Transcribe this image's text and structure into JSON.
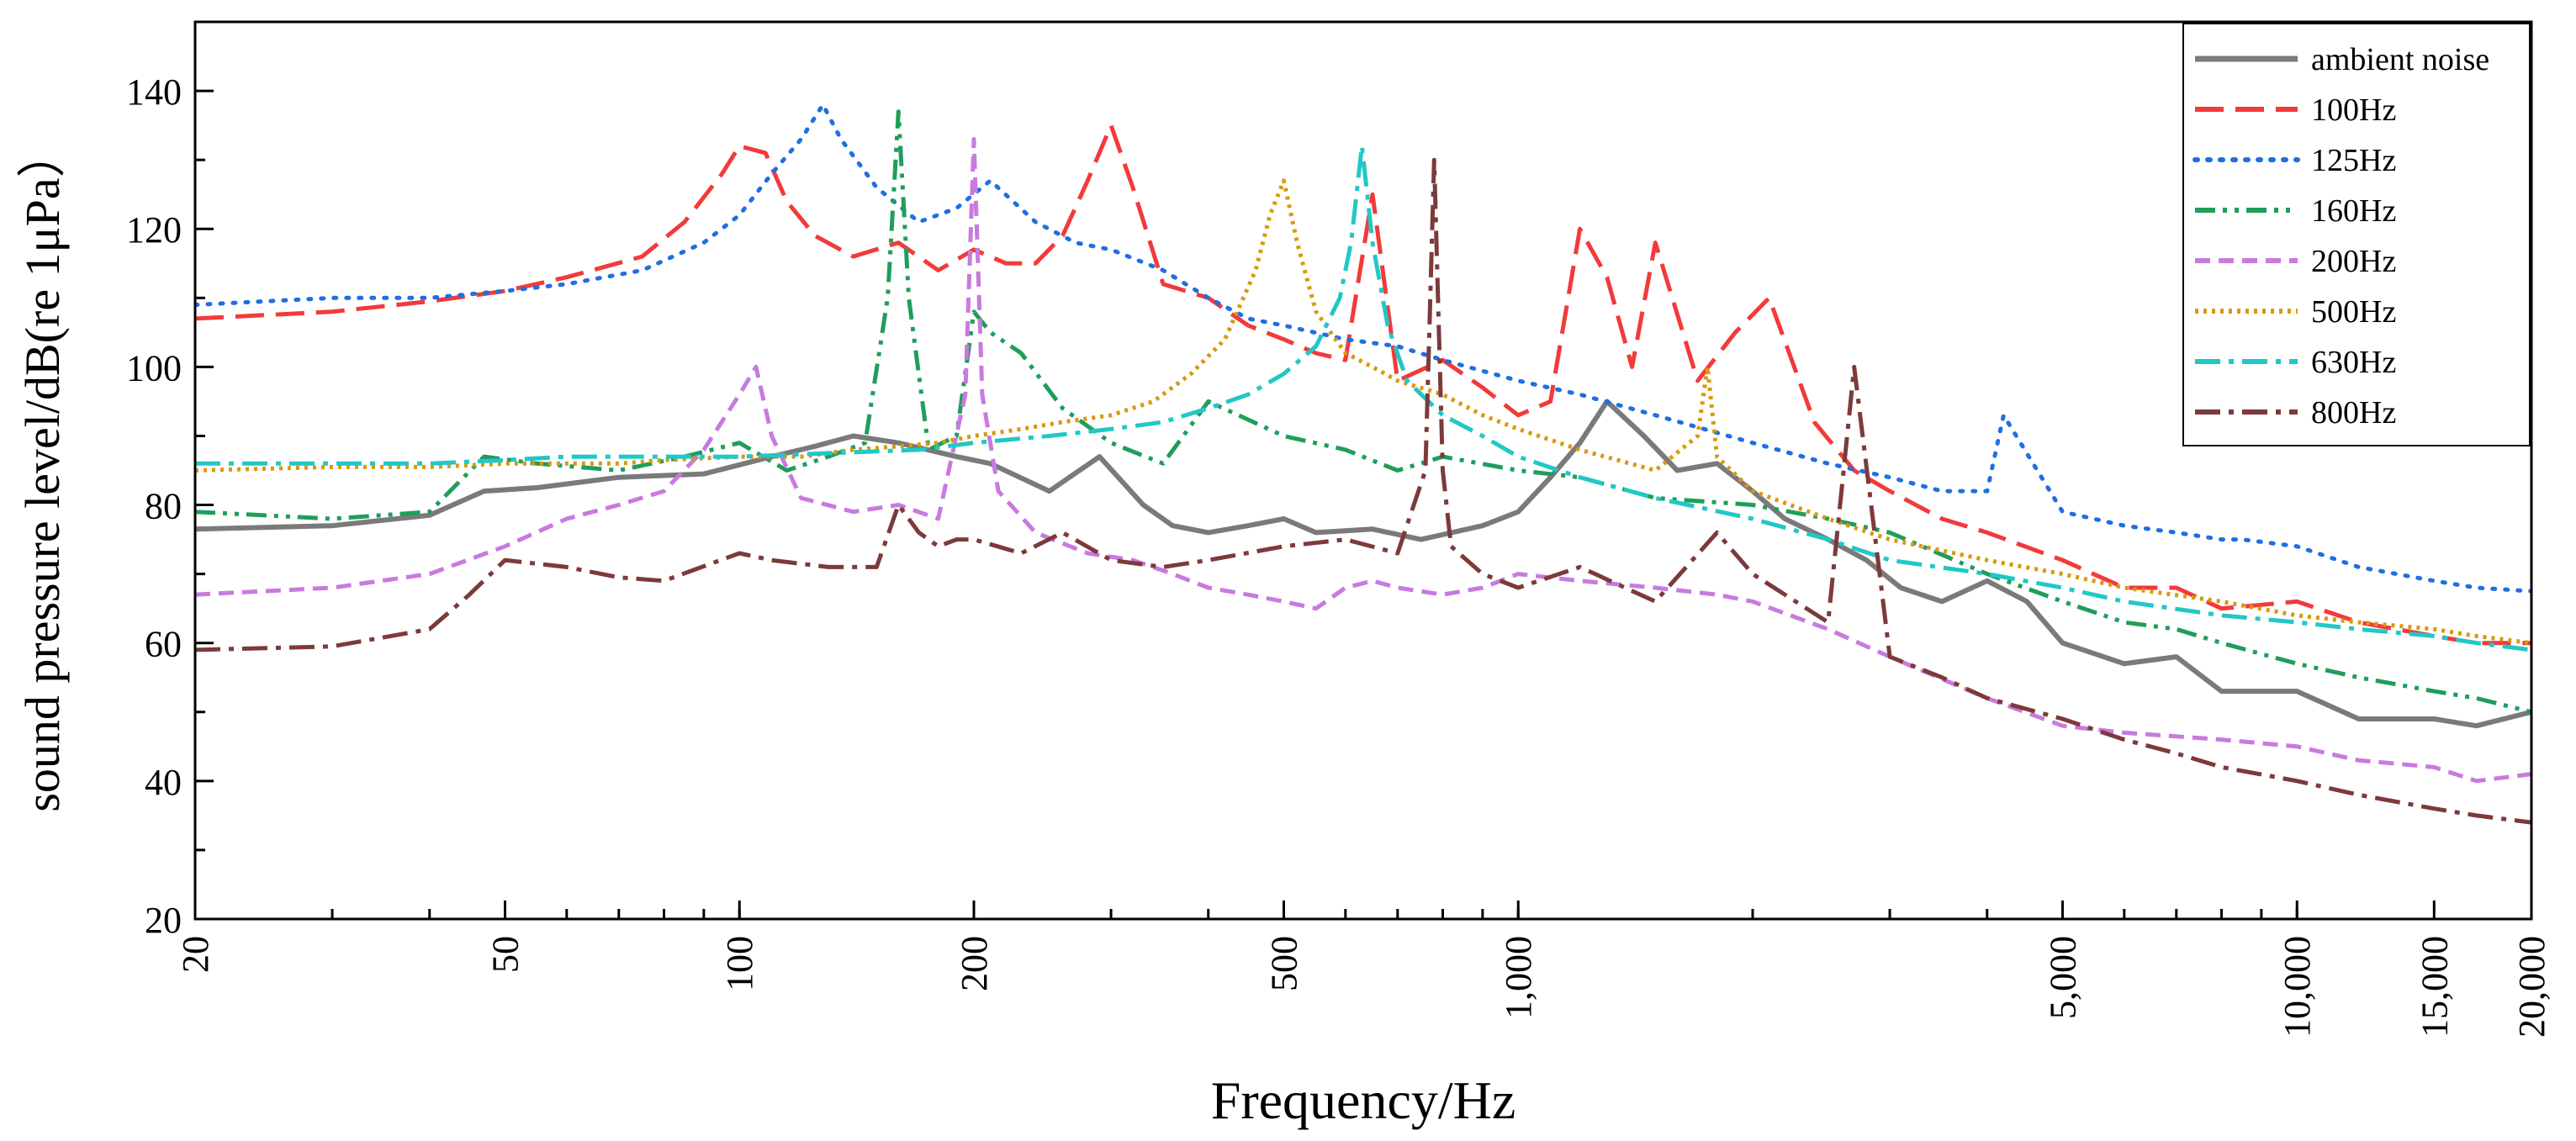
{
  "chart_data": {
    "type": "line",
    "title": "",
    "xlabel": "Frequency/Hz",
    "ylabel": "sound pressure level/dB(re 1μPa）",
    "xscale": "log",
    "xlim": [
      20,
      20000
    ],
    "ylim": [
      20,
      150
    ],
    "x_ticks": [
      20,
      50,
      100,
      200,
      500,
      1000,
      5000,
      10000,
      15000,
      20000
    ],
    "x_tick_labels": [
      "20",
      "50",
      "100",
      "200",
      "500",
      "1,000",
      "5,000",
      "10,000",
      "15,000",
      "20,000"
    ],
    "y_ticks": [
      20,
      40,
      60,
      80,
      100,
      120,
      140
    ],
    "y_tick_labels": [
      "20",
      "40",
      "60",
      "80",
      "100",
      "120",
      "140"
    ],
    "legend_position": "top-right",
    "series": [
      {
        "name": "ambient noise",
        "color": "#7a7a7a",
        "dash": "solid",
        "x": [
          20,
          30,
          40,
          47,
          55,
          70,
          90,
          110,
          125,
          140,
          160,
          190,
          210,
          250,
          290,
          330,
          360,
          400,
          450,
          500,
          550,
          650,
          750,
          900,
          1000,
          1100,
          1200,
          1300,
          1450,
          1600,
          1800,
          2000,
          2200,
          2500,
          2800,
          3100,
          3500,
          4000,
          4500,
          5000,
          6000,
          7000,
          8000,
          10000,
          12000,
          15000,
          17000,
          20000
        ],
        "y": [
          76.5,
          77,
          78.5,
          82,
          82.5,
          84,
          84.5,
          87,
          88.5,
          90,
          89,
          87,
          86,
          82,
          87,
          80,
          77,
          76,
          77,
          78,
          76,
          76.5,
          75,
          77,
          79,
          84,
          89,
          95,
          90,
          85,
          86,
          82,
          78,
          75,
          72,
          68,
          66,
          69,
          66,
          60,
          57,
          58,
          53,
          53,
          49,
          49,
          48,
          50
        ]
      },
      {
        "name": "100Hz",
        "color": "#f23a3a",
        "dash": "long-dash",
        "x": [
          20,
          30,
          40,
          50,
          60,
          75,
          85,
          95,
          100,
          108,
          115,
          125,
          140,
          160,
          180,
          200,
          220,
          240,
          260,
          280,
          300,
          320,
          350,
          400,
          450,
          500,
          550,
          600,
          650,
          700,
          800,
          900,
          1000,
          1100,
          1200,
          1300,
          1400,
          1500,
          1700,
          1900,
          2100,
          2400,
          2700,
          3000,
          3500,
          4000,
          5000,
          6000,
          7000,
          8000,
          10000,
          12000,
          15000,
          17000,
          20000
        ],
        "y": [
          107,
          108,
          109.5,
          111,
          113,
          116,
          121,
          128,
          132,
          131,
          124,
          119,
          116,
          118,
          114,
          117,
          115,
          115,
          119,
          127,
          135,
          126,
          112,
          110,
          106,
          104,
          102,
          101,
          125,
          98,
          101,
          97,
          93,
          95,
          120,
          113,
          100,
          118,
          98,
          105,
          110,
          92,
          85,
          82,
          78,
          76,
          72,
          68,
          68,
          65,
          66,
          63,
          61,
          60,
          60
        ]
      },
      {
        "name": "125Hz",
        "color": "#1f6fe0",
        "dash": "dotted",
        "x": [
          20,
          30,
          40,
          50,
          60,
          75,
          90,
          100,
          110,
          120,
          128,
          135,
          150,
          170,
          190,
          210,
          240,
          270,
          300,
          350,
          400,
          450,
          500,
          600,
          700,
          800,
          1000,
          1200,
          1500,
          2000,
          2500,
          3000,
          3500,
          4000,
          4200,
          5000,
          6000,
          7000,
          8000,
          8500,
          10000,
          12000,
          15000,
          17000,
          20000
        ],
        "y": [
          109,
          110,
          110,
          111,
          112,
          114,
          118,
          122,
          128,
          133,
          138,
          133,
          126,
          121,
          123,
          127,
          121,
          118,
          117,
          114,
          110,
          107,
          106,
          104,
          103,
          101,
          98,
          96,
          93,
          89,
          86,
          84,
          82,
          82,
          93,
          79,
          77,
          76,
          75,
          75,
          74,
          71,
          69,
          68,
          67.5
        ]
      },
      {
        "name": "160Hz",
        "color": "#1f9e5a",
        "dash": "dash-dot-dot",
        "x": [
          20,
          30,
          40,
          47,
          55,
          70,
          85,
          100,
          115,
          130,
          145,
          155,
          160,
          165,
          175,
          190,
          200,
          210,
          230,
          260,
          300,
          350,
          400,
          500,
          600,
          700,
          800,
          1000,
          1200,
          1500,
          2000,
          2500,
          3000,
          4000,
          5000,
          6000,
          7000,
          8000,
          10000,
          12000,
          15000,
          17000,
          20000
        ],
        "y": [
          79,
          78,
          79,
          87,
          86,
          85,
          87,
          89,
          85,
          87,
          89,
          110,
          137,
          110,
          88,
          90,
          108,
          105,
          102,
          94,
          89,
          86,
          95,
          90,
          88,
          85,
          87,
          85,
          84,
          81,
          80,
          78,
          76,
          70,
          66,
          63,
          62,
          60,
          57,
          55,
          53,
          52,
          50
        ]
      },
      {
        "name": "200Hz",
        "color": "#c87adf",
        "dash": "short-dash",
        "x": [
          20,
          30,
          40,
          50,
          60,
          70,
          80,
          90,
          100,
          105,
          110,
          120,
          140,
          160,
          180,
          195,
          200,
          205,
          215,
          240,
          280,
          320,
          360,
          400,
          450,
          500,
          550,
          600,
          650,
          700,
          800,
          900,
          1000,
          1200,
          1500,
          1800,
          2000,
          2500,
          3000,
          4000,
          5000,
          6000,
          8000,
          10000,
          12000,
          15000,
          17000,
          20000
        ],
        "y": [
          67,
          68,
          70,
          74,
          78,
          80,
          82,
          88,
          96,
          100,
          90,
          81,
          79,
          80,
          78,
          96,
          133,
          96,
          82,
          76,
          73,
          72,
          70,
          68,
          67,
          66,
          65,
          68,
          69,
          68,
          67,
          68,
          70,
          69,
          68,
          67,
          66,
          62,
          58,
          52,
          48,
          47,
          46,
          45,
          43,
          42,
          40,
          41
        ]
      },
      {
        "name": "500Hz",
        "color": "#d9990e",
        "dash": "dense-dotted",
        "x": [
          20,
          30,
          40,
          50,
          60,
          70,
          80,
          100,
          120,
          140,
          160,
          180,
          200,
          230,
          260,
          300,
          340,
          380,
          420,
          460,
          480,
          500,
          520,
          550,
          600,
          650,
          700,
          800,
          900,
          1000,
          1200,
          1500,
          1700,
          1750,
          1800,
          2000,
          2500,
          3000,
          4000,
          5000,
          6000,
          8000,
          10000,
          12000,
          15000,
          17000,
          20000
        ],
        "y": [
          85,
          85.5,
          85.5,
          86,
          86,
          86,
          86.5,
          87,
          87,
          88,
          88.5,
          89,
          90,
          91,
          92,
          93,
          95,
          99,
          104,
          114,
          122,
          127,
          118,
          108,
          102,
          100,
          98,
          96,
          93,
          91,
          88,
          85,
          90,
          100,
          87,
          82,
          78,
          75,
          72,
          70,
          68,
          66,
          64,
          63,
          62,
          61,
          60
        ]
      },
      {
        "name": "630Hz",
        "color": "#22c7c7",
        "dash": "dash-dot",
        "x": [
          20,
          30,
          40,
          50,
          60,
          70,
          80,
          100,
          130,
          170,
          200,
          250,
          300,
          350,
          400,
          450,
          500,
          550,
          590,
          610,
          630,
          650,
          680,
          720,
          800,
          900,
          1000,
          1200,
          1500,
          2000,
          2500,
          3000,
          4000,
          5000,
          6000,
          8000,
          10000,
          12000,
          15000,
          17000,
          20000
        ],
        "y": [
          86,
          86,
          86,
          86.5,
          87,
          87,
          87,
          87,
          87.5,
          88,
          89,
          90,
          91,
          92,
          94,
          96,
          99,
          103,
          110,
          118,
          132,
          118,
          106,
          98,
          93,
          90,
          87,
          84,
          81,
          78,
          75,
          72,
          70,
          68,
          66,
          64,
          63,
          62,
          61,
          60,
          59
        ]
      },
      {
        "name": "800Hz",
        "color": "#7d3a3a",
        "dash": "dash-dot",
        "x": [
          20,
          30,
          40,
          45,
          50,
          60,
          70,
          80,
          100,
          110,
          130,
          150,
          160,
          170,
          180,
          190,
          200,
          230,
          260,
          300,
          350,
          400,
          500,
          600,
          700,
          760,
          780,
          800,
          820,
          900,
          1000,
          1200,
          1500,
          1800,
          2000,
          2500,
          2700,
          3000,
          3500,
          4000,
          5000,
          6000,
          7000,
          8000,
          10000,
          12000,
          15000,
          17000,
          20000
        ],
        "y": [
          59,
          59.5,
          62,
          67,
          72,
          71,
          69.5,
          69,
          73,
          72,
          71,
          71,
          80,
          76,
          74,
          75,
          75,
          73,
          76,
          72,
          71,
          72,
          74,
          75,
          73,
          85,
          130,
          85,
          74,
          70,
          68,
          71,
          66,
          76,
          70,
          63,
          100,
          58,
          55,
          52,
          49,
          46,
          44,
          42,
          40,
          38,
          36,
          35,
          34
        ]
      }
    ]
  }
}
